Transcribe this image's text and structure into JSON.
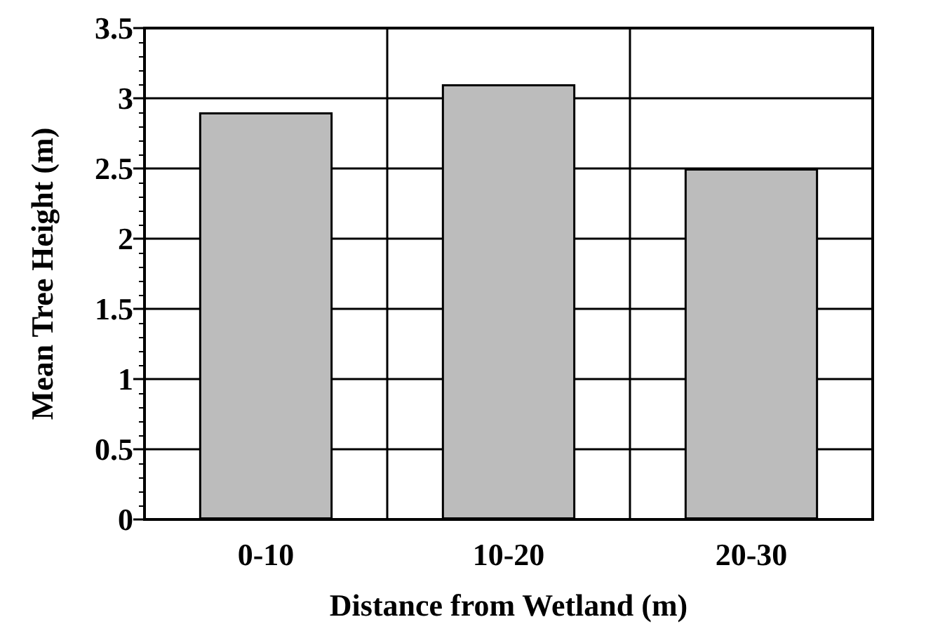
{
  "chart_data": {
    "type": "bar",
    "xlabel": "Distance from Wetland (m)",
    "ylabel": "Mean Tree Height (m)",
    "categories": [
      "0-10",
      "10-20",
      "20-30"
    ],
    "values": [
      2.9,
      3.1,
      2.5
    ],
    "color": "#bcbcbc",
    "ylim": [
      0,
      3.5
    ],
    "yticks": [
      0,
      0.5,
      1,
      1.5,
      2,
      2.5,
      3,
      3.5
    ],
    "grid": true
  }
}
